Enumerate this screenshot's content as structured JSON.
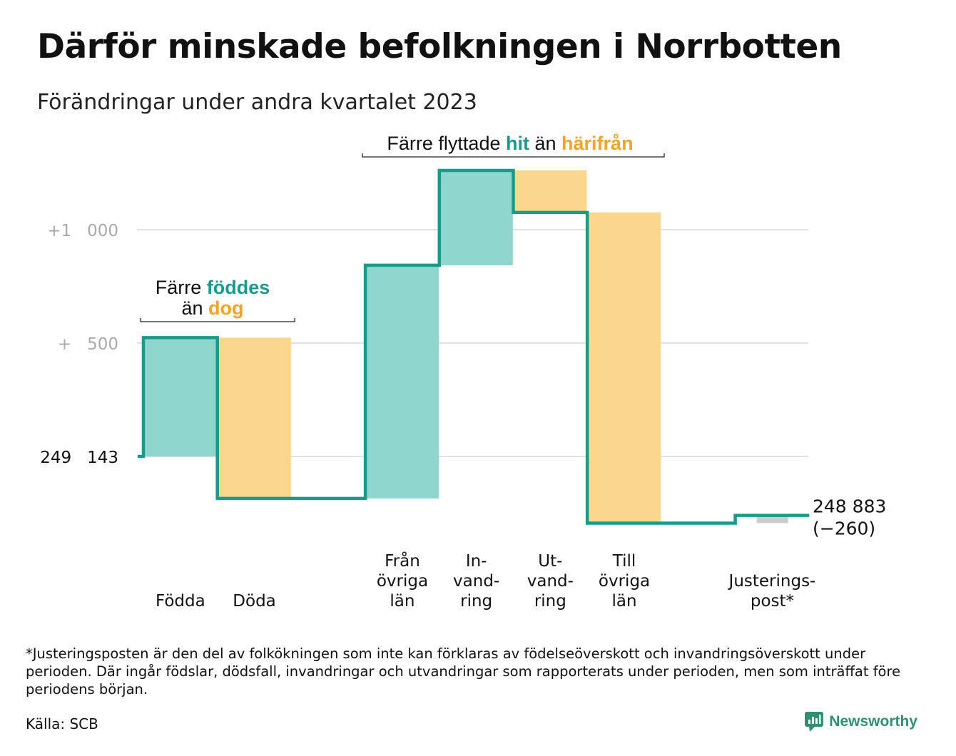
{
  "title": "Därför minskade befolkningen i Norrbotten",
  "subtitle": "Förändringar under andra kvartalet 2023",
  "colors": {
    "inflow": "#8ed6ce",
    "outflow": "#fbd78e",
    "adjustment": "#cccccc",
    "line": "#1a9a8a",
    "teal_text": "#1a9a8a",
    "orange_text": "#f0a524",
    "grid": "#e2e2e2",
    "tick_text": "#aaaaaa"
  },
  "chart_data": {
    "type": "waterfall",
    "start_value": 249143,
    "end_value": 248883,
    "start_label": "249   143",
    "end_label": [
      "248 883",
      "(−260)"
    ],
    "y_ticks": [
      {
        "offset": 0,
        "label": "249   143"
      },
      {
        "offset": 500,
        "label": "+   500"
      },
      {
        "offset": 1000,
        "label": "+1   000"
      }
    ],
    "steps": [
      {
        "key": "fodda",
        "label_lines": [
          "Födda"
        ],
        "change": 524,
        "kind": "inflow"
      },
      {
        "key": "doda",
        "label_lines": [
          "Döda"
        ],
        "change": -709,
        "kind": "outflow"
      },
      {
        "key": "gap",
        "label_lines": [],
        "change": 0,
        "kind": "gap"
      },
      {
        "key": "fran-ovriga-lan",
        "label_lines": [
          "Från",
          "övriga",
          "län"
        ],
        "change": 1028,
        "kind": "inflow"
      },
      {
        "key": "invandring",
        "label_lines": [
          "In-",
          "vand-",
          "ring"
        ],
        "change": 418,
        "kind": "inflow"
      },
      {
        "key": "utvandring",
        "label_lines": [
          "Ut-",
          "vand-",
          "ring"
        ],
        "change": -185,
        "kind": "outflow"
      },
      {
        "key": "till-ovriga-lan",
        "label_lines": [
          "Till",
          "övriga",
          "län"
        ],
        "change": -1370,
        "kind": "outflow"
      },
      {
        "key": "gap2",
        "label_lines": [],
        "change": 0,
        "kind": "gap"
      },
      {
        "key": "justeringspost",
        "label_lines": [
          "Justerings-",
          "post*"
        ],
        "change": 34,
        "kind": "adjustment"
      }
    ]
  },
  "annotations": {
    "births_deaths": {
      "line1_prefix": "Färre ",
      "line1_highlight": "föddes",
      "line2_prefix": "än ",
      "line2_highlight": "dog"
    },
    "migration": {
      "prefix": "Färre flyttade ",
      "highlight1": "hit",
      "middle": " än ",
      "highlight2": "härifrån"
    }
  },
  "footnote": "*Justeringsposten är den del av folkökningen som inte kan förklaras av födelseöverskott och invandringsöverskott under perioden. Där ingår födslar, dödsfall, invandringar och utvandringar som rapporterats under perioden, men som inträffat före periodens början.",
  "source": "Källa: SCB",
  "brand": "Newsworthy"
}
